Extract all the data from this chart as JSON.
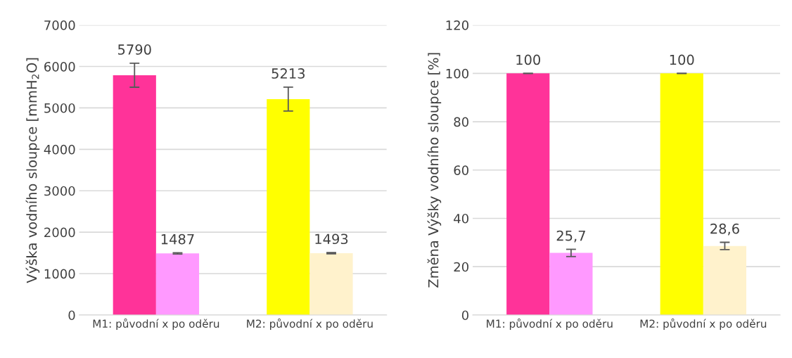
{
  "chart_data": [
    {
      "type": "bar",
      "ylabel": "Výška vodního sloupce [mmH$_{2}$O]",
      "categories": [
        "M1: původní x po oděru",
        "M2: původní x po oděru"
      ],
      "series": [
        {
          "colors": [
            "#ff3399",
            "#ffff00"
          ],
          "values": [
            5790,
            5213
          ],
          "errors": [
            290,
            290
          ],
          "value_labels": [
            "5790",
            "5213"
          ]
        },
        {
          "colors": [
            "#ff99ff",
            "#fff2cc"
          ],
          "values": [
            1487,
            1493
          ],
          "errors": [
            15,
            15
          ],
          "value_labels": [
            "1487",
            "1493"
          ]
        }
      ],
      "ylim": [
        0,
        7000
      ],
      "yticks": [
        0,
        1000,
        2000,
        3000,
        4000,
        5000,
        6000,
        7000
      ],
      "grid": "y",
      "legend": false
    },
    {
      "type": "bar",
      "ylabel": "Změna Výšky vodního sloupce [%]",
      "categories": [
        "M1: původní x po oděru",
        "M2: původní x po oděru"
      ],
      "series": [
        {
          "colors": [
            "#ff3399",
            "#ffff00"
          ],
          "values": [
            100,
            100
          ],
          "errors": [
            0,
            0
          ],
          "value_labels": [
            "100",
            "100"
          ]
        },
        {
          "colors": [
            "#ff99ff",
            "#fff2cc"
          ],
          "values": [
            25.7,
            28.6
          ],
          "errors": [
            1.5,
            1.5
          ],
          "value_labels": [
            "25,7",
            "28,6"
          ]
        }
      ],
      "ylim": [
        0,
        120
      ],
      "yticks": [
        0,
        20,
        40,
        60,
        80,
        100,
        120
      ],
      "grid": "y",
      "legend": false
    }
  ]
}
